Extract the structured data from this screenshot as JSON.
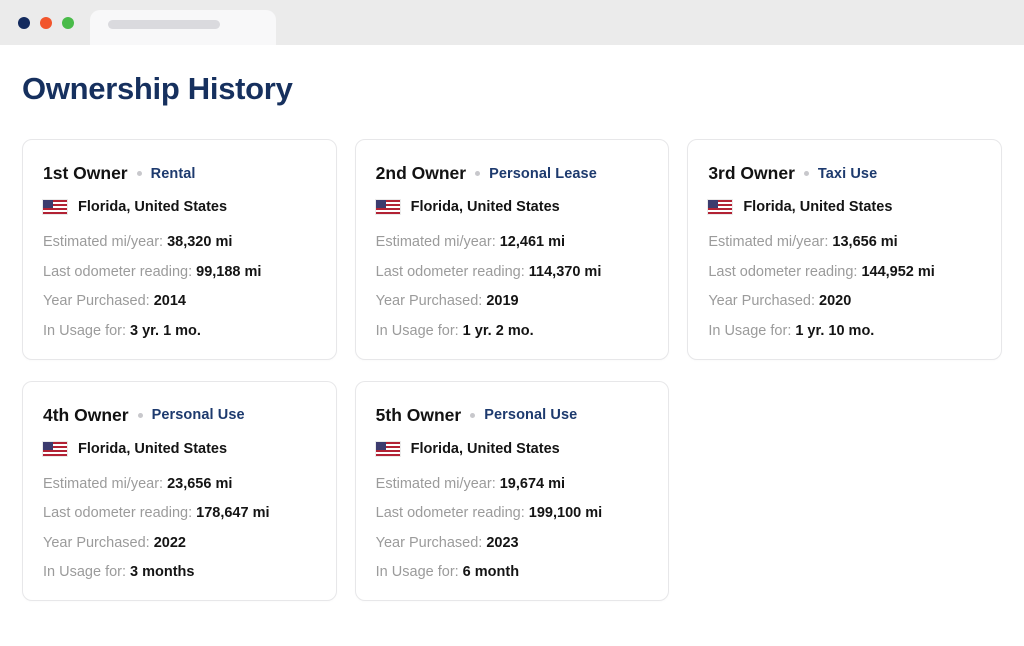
{
  "page_title": "Ownership History",
  "field_labels": {
    "estimated": "Estimated mi/year:",
    "odometer": "Last odometer reading:",
    "year_purchased": "Year Purchased:",
    "in_usage": "In Usage for:"
  },
  "owners": [
    {
      "title": "1st Owner",
      "type": "Rental",
      "location": "Florida, United States",
      "estimated": "38,320 mi",
      "odometer": "99,188 mi",
      "year_purchased": "2014",
      "in_usage": "3 yr. 1 mo."
    },
    {
      "title": "2nd Owner",
      "type": "Personal Lease",
      "location": "Florida, United States",
      "estimated": "12,461 mi",
      "odometer": "114,370 mi",
      "year_purchased": "2019",
      "in_usage": "1 yr. 2 mo."
    },
    {
      "title": "3rd Owner",
      "type": "Taxi Use",
      "location": "Florida, United States",
      "estimated": "13,656 mi",
      "odometer": "144,952 mi",
      "year_purchased": "2020",
      "in_usage": "1 yr. 10 mo."
    },
    {
      "title": "4th Owner",
      "type": "Personal Use",
      "location": "Florida, United States",
      "estimated": "23,656 mi",
      "odometer": "178,647 mi",
      "year_purchased": "2022",
      "in_usage": "3 months"
    },
    {
      "title": "5th Owner",
      "type": "Personal Use",
      "location": "Florida, United States",
      "estimated": "19,674 mi",
      "odometer": "199,100 mi",
      "year_purchased": "2023",
      "in_usage": "6 month"
    }
  ],
  "colors": {
    "heading": "#16305e",
    "owner_type": "#1d3a6e",
    "label_gray": "#9b9b9b",
    "dot_navy": "#132a5e",
    "dot_orange": "#f2552c",
    "dot_green": "#49bb49"
  }
}
